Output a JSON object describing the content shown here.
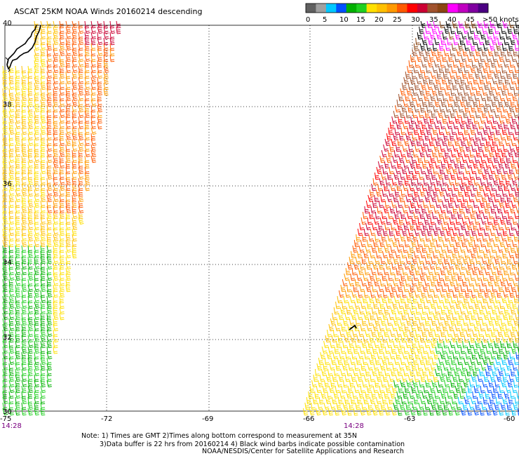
{
  "title": "ASCAT 25KM NOAA Winds 20160214 descending",
  "legend": {
    "colors": [
      "#606060",
      "#a0a0a0",
      "#00c8ff",
      "#0050ff",
      "#00b000",
      "#20d020",
      "#ffe000",
      "#ffc000",
      "#ff9900",
      "#ff5a00",
      "#ff0000",
      "#cc0033",
      "#a0522d",
      "#8b4513",
      "#ff00ff",
      "#c000c0",
      "#8000a0",
      "#4b0082"
    ],
    "tick_labels": [
      "0",
      "5",
      "10",
      "15",
      "20",
      "25",
      "30",
      "35",
      "40",
      "45",
      ">50 knots"
    ]
  },
  "axes": {
    "lon_labels": [
      "-75",
      "-72",
      "-69",
      "-66",
      "-63",
      "-60"
    ],
    "lat_labels": [
      "40",
      "38",
      "36",
      "34",
      "32",
      "30"
    ],
    "lon_values": [
      -75,
      -72,
      -69,
      -66,
      -63,
      -60
    ],
    "lat_values": [
      40,
      38,
      36,
      34,
      32,
      30
    ]
  },
  "times": {
    "left": "14:28",
    "right": "14:28"
  },
  "notes": {
    "line1": "Note: 1) Times are GMT 2)Times along bottom correspond to measurement at 35N",
    "line2": "3)Data buffer is 22 hrs from 20160214 4) Black wind barbs indicate possible contamination",
    "line3": "NOAA/NESDIS/Center for Satellite Applications and Research"
  },
  "colors": {
    "coast": "#000000",
    "grid": "#000000",
    "background": "#ffffff"
  }
}
